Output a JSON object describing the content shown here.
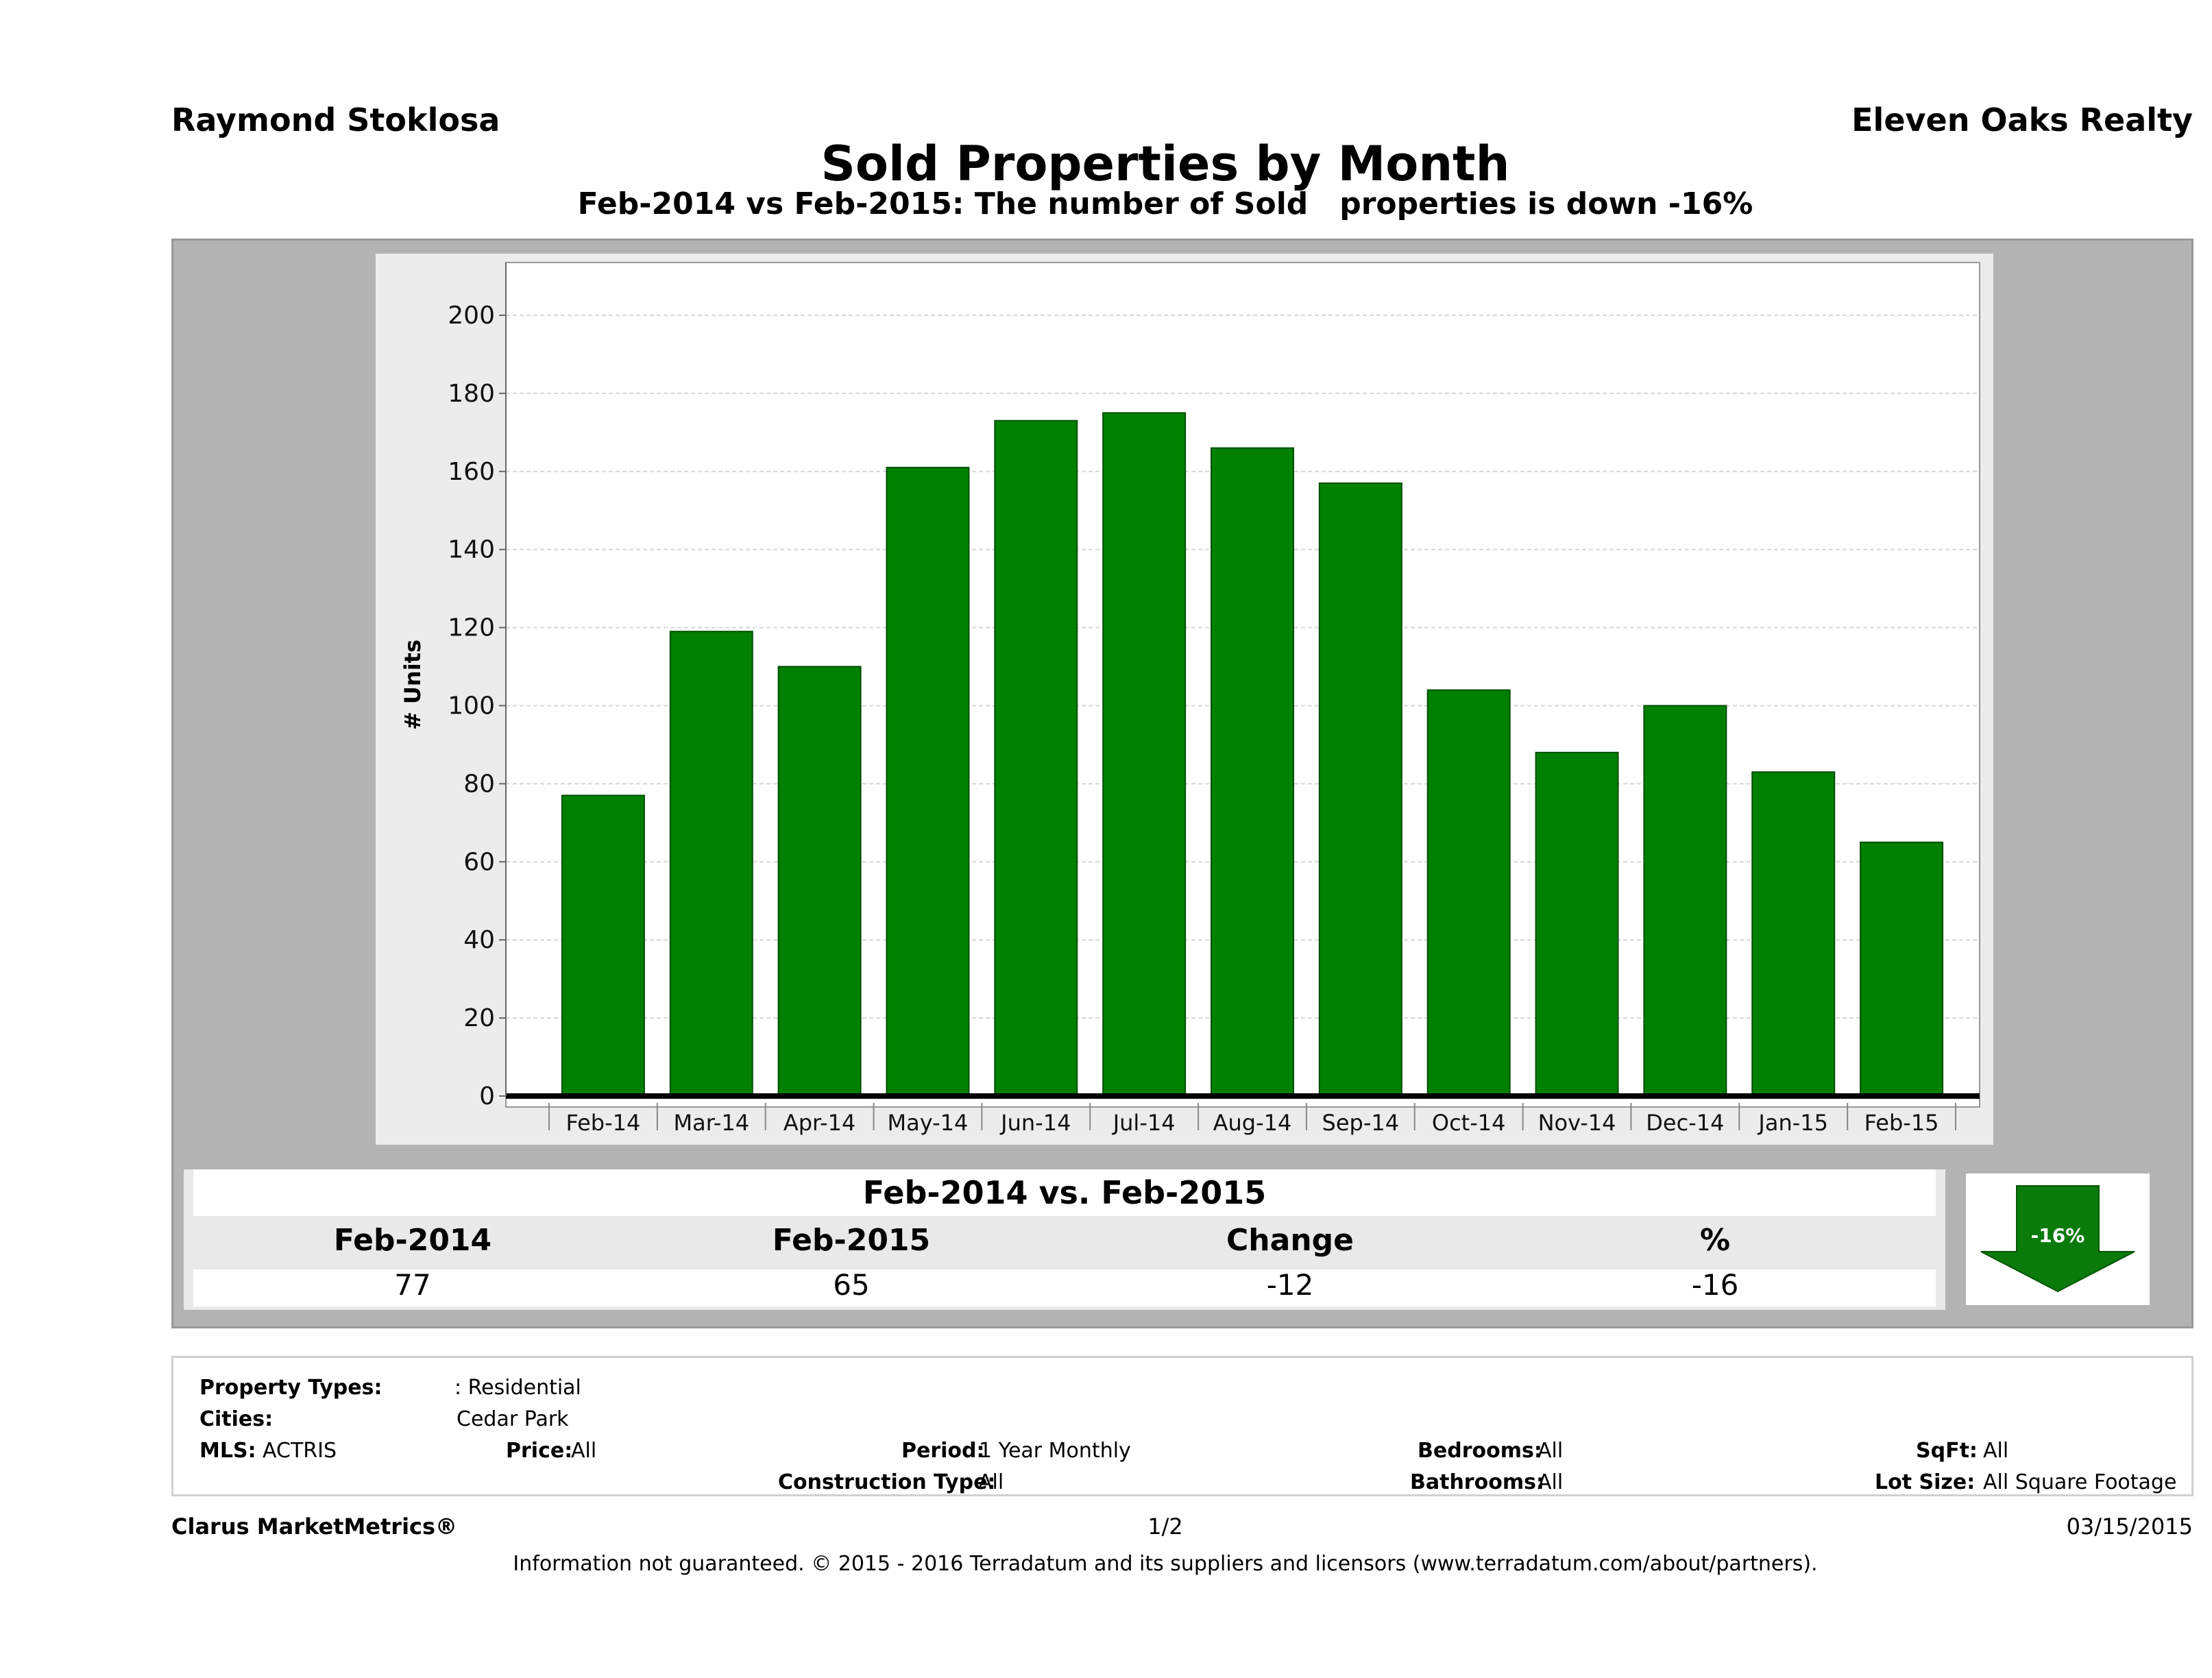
{
  "header": {
    "agent": "Raymond Stoklosa",
    "company": "Eleven Oaks Realty",
    "title": "Sold Properties by Month",
    "subtitle": "Feb-2014 vs Feb-2015: The number of Sold   properties is down -16%"
  },
  "chart_data": {
    "type": "bar",
    "categories": [
      "Feb-14",
      "Mar-14",
      "Apr-14",
      "May-14",
      "Jun-14",
      "Jul-14",
      "Aug-14",
      "Sep-14",
      "Oct-14",
      "Nov-14",
      "Dec-14",
      "Jan-15",
      "Feb-15"
    ],
    "values": [
      77,
      119,
      110,
      161,
      173,
      175,
      166,
      157,
      104,
      88,
      100,
      83,
      65
    ],
    "ylabel": "# Units",
    "ylim": [
      0,
      210
    ],
    "yticks": [
      0,
      20,
      40,
      60,
      80,
      100,
      120,
      140,
      160,
      180,
      200
    ],
    "bar_color": "#008000",
    "grid": true
  },
  "summary": {
    "title": "Feb-2014 vs. Feb-2015",
    "headers": [
      "Feb-2014",
      "Feb-2015",
      "Change",
      "%"
    ],
    "values": [
      "77",
      "65",
      "-12",
      "-16"
    ],
    "badge": "-16%",
    "badge_color": "#0a7a0a"
  },
  "filters": {
    "property_types_label": "Property Types:",
    "property_types_value": ": Residential",
    "cities_label": "Cities:",
    "cities_value": "Cedar Park",
    "mls_label": "MLS:",
    "mls_value": "ACTRIS",
    "price_label": "Price:",
    "price_value": "All",
    "period_label": "Period:",
    "period_value": "1 Year Monthly",
    "construction_label": "Construction Type:",
    "construction_value": "All",
    "bedrooms_label": "Bedrooms:",
    "bedrooms_value": "All",
    "bathrooms_label": "Bathrooms:",
    "bathrooms_value": "All",
    "sqft_label": "SqFt:",
    "sqft_value": "All",
    "lotsize_label": "Lot Size:",
    "lotsize_value": "All Square Footage"
  },
  "footer": {
    "brand": "Clarus MarketMetrics®",
    "page": "1/2",
    "date": "03/15/2015",
    "disclaimer": "Information not guaranteed. © 2015 - 2016 Terradatum and its suppliers and licensors (www.terradatum.com/about/partners)."
  }
}
